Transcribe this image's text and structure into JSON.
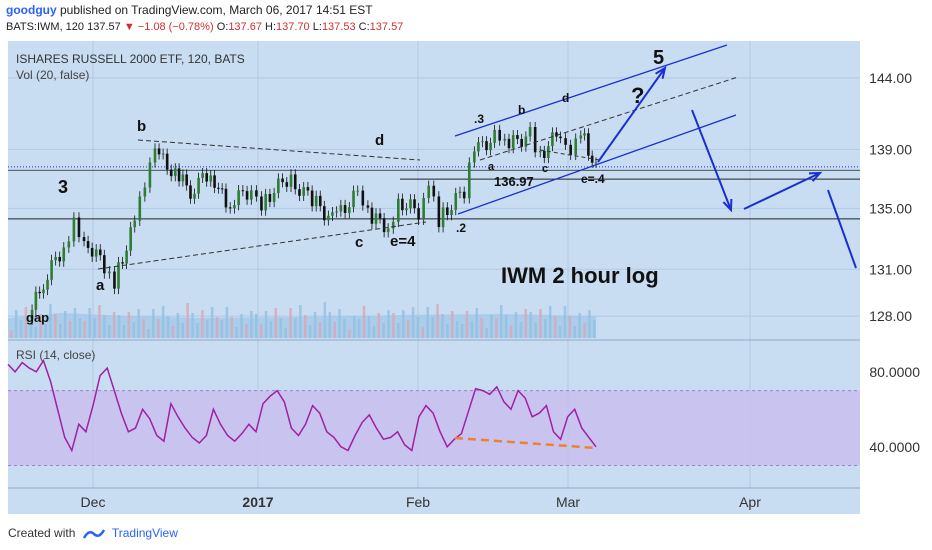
{
  "header": {
    "author": "goodguy",
    "published": "published on TradingView.com, March 06, 2017 14:51 EST",
    "symbol": "BATS:IWM, 120",
    "last": "137.57",
    "change": "−1.08 (−0.78%)",
    "open_label": "O:",
    "open": "137.67",
    "high_label": "H:",
    "high": "137.70",
    "low_label": "L:",
    "low": "137.53",
    "close_label": "C:",
    "close": "137.57"
  },
  "footer": {
    "created_with": "Created with",
    "brand": "TradingView"
  },
  "colors": {
    "bg": "#c8dcf2",
    "rsi_band": "#c8c0ee",
    "rsi_line": "#a020a0",
    "candle_up": "#2e7d32",
    "candle_down": "#111111",
    "annot": "#1a2fd0",
    "vol": "#9fc5e8"
  },
  "chart_data": [
    {
      "type": "line",
      "title": "ISHARES RUSSELL 2000 ETF, 120, BATS",
      "subtitle": "Vol (20, false)",
      "scale": "log",
      "ylim": [
        126.5,
        146.5
      ],
      "yticks": [
        "144.00",
        "139.00",
        "135.00",
        "131.00",
        "128.00"
      ],
      "ytick_values": [
        144,
        139,
        135,
        131,
        128
      ],
      "xticks": [
        "Dec",
        "2017",
        "Feb",
        "Mar",
        "Apr"
      ],
      "series": [
        {
          "x": [
            "2016-11-14",
            "2016-11-17",
            "2016-11-21",
            "2016-11-23",
            "2016-11-25",
            "2016-11-29",
            "2016-12-01",
            "2016-12-05",
            "2016-12-07",
            "2016-12-09",
            "2016-12-13",
            "2016-12-16",
            "2016-12-20",
            "2016-12-23",
            "2016-12-28",
            "2016-12-30",
            "2017-01-04",
            "2017-01-09",
            "2017-01-13",
            "2017-01-18",
            "2017-01-20",
            "2017-01-24",
            "2017-01-26",
            "2017-01-30",
            "2017-02-01",
            "2017-02-03",
            "2017-02-08",
            "2017-02-10",
            "2017-02-14",
            "2017-02-16",
            "2017-02-21",
            "2017-02-23",
            "2017-02-27",
            "2017-03-01",
            "2017-03-03",
            "2017-03-06"
          ],
          "values": [
            127.8,
            130.2,
            132.5,
            134.2,
            133.0,
            131.2,
            130.3,
            134.0,
            136.5,
            138.8,
            137.3,
            136.2,
            137.5,
            135.2,
            136.3,
            135.4,
            137.0,
            135.6,
            134.2,
            136.0,
            134.5,
            133.8,
            135.5,
            134.8,
            137.0,
            134.3,
            136.2,
            138.9,
            139.8,
            139.2,
            140.0,
            138.6,
            140.3,
            139.0,
            140.5,
            137.57
          ]
        }
      ],
      "annotations": [
        "3",
        "a",
        "b",
        "c",
        "d",
        "e=4",
        ".2",
        ".3",
        "a",
        "b",
        "c",
        "d",
        "e=.4",
        "136.97",
        "5",
        "?",
        "IWM 2 hour log",
        "gap"
      ]
    },
    {
      "type": "line",
      "title": "RSI (14, close)",
      "ylim": [
        18,
        97
      ],
      "yticks": [
        "80.0000",
        "40.0000"
      ],
      "ytick_values": [
        80,
        40
      ],
      "band": [
        30,
        70
      ],
      "series": [
        {
          "values": [
            84,
            80,
            85,
            82,
            80,
            86,
            75,
            60,
            45,
            38,
            52,
            48,
            62,
            78,
            82,
            70,
            58,
            48,
            50,
            60,
            55,
            46,
            43,
            63,
            56,
            50,
            45,
            42,
            46,
            60,
            52,
            46,
            43,
            47,
            52,
            48,
            63,
            67,
            70,
            64,
            50,
            46,
            52,
            62,
            58,
            48,
            45,
            40,
            38,
            46,
            53,
            57,
            50,
            44,
            45,
            48,
            41,
            38,
            56,
            62,
            58,
            48,
            40,
            44,
            47,
            59,
            71,
            70,
            68,
            72,
            64,
            60,
            70,
            66,
            56,
            58,
            62,
            48,
            44,
            56,
            60,
            50,
            45,
            40
          ]
        }
      ]
    }
  ]
}
